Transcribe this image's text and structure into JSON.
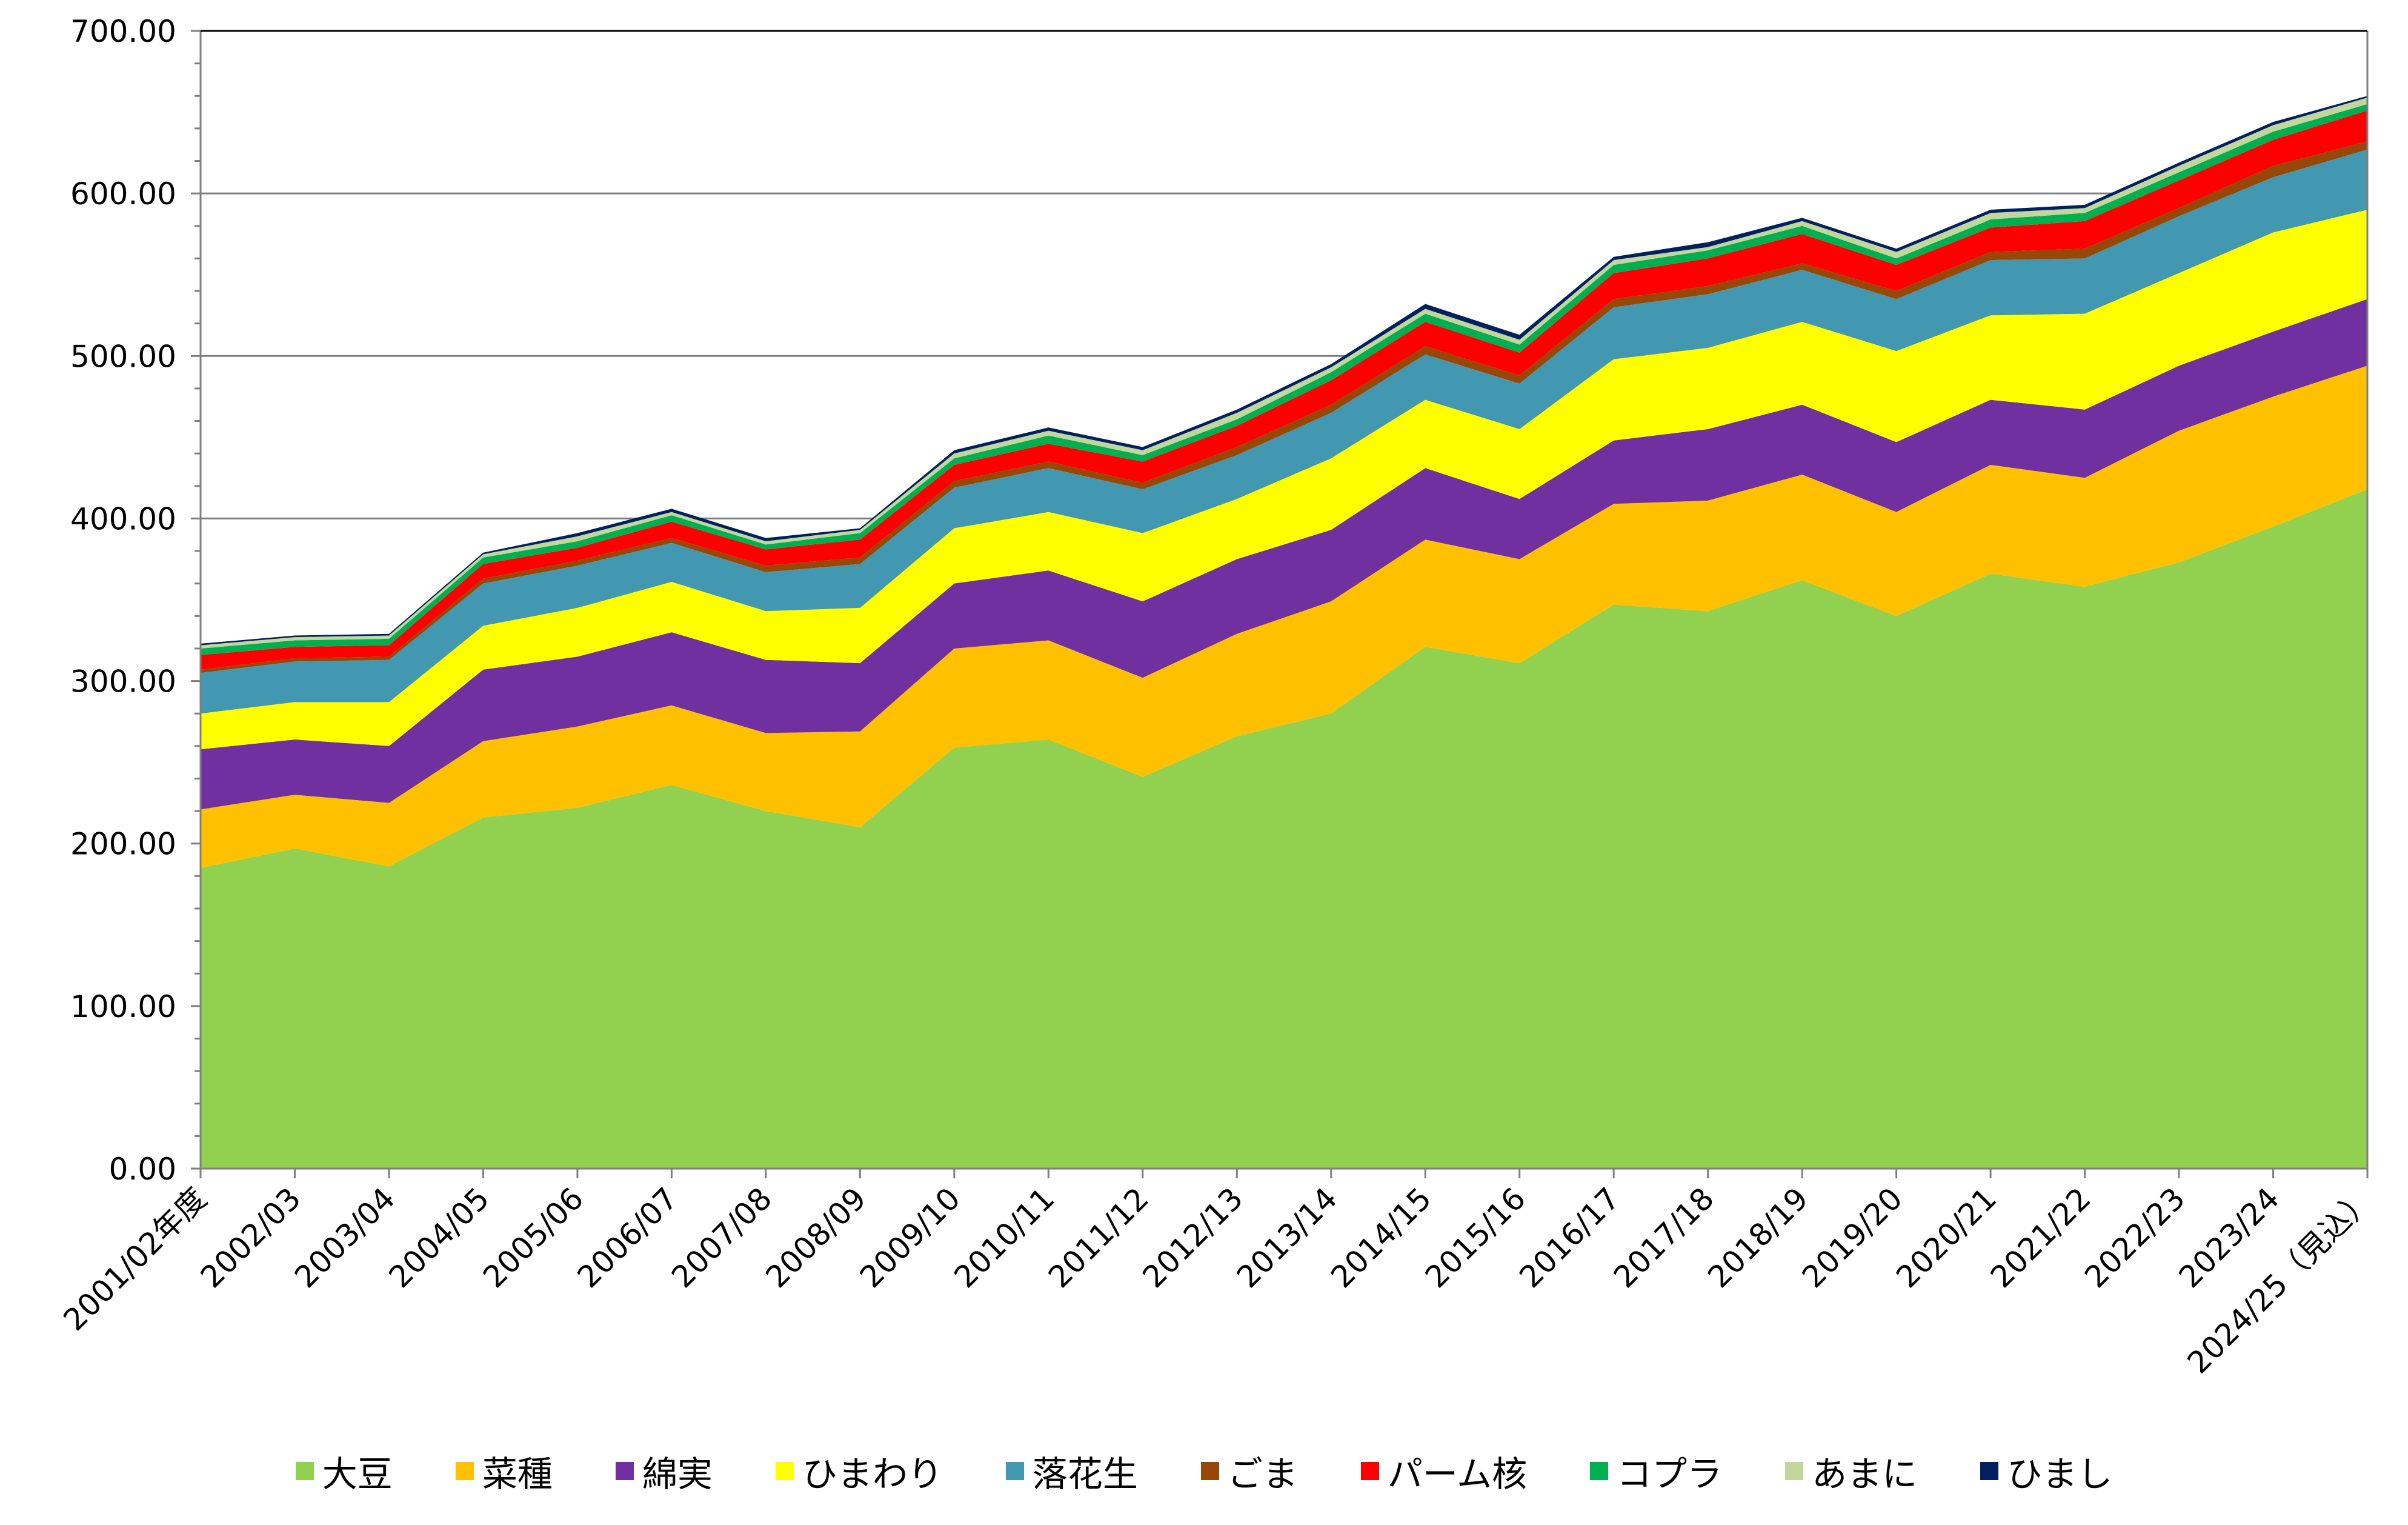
{
  "chart_data": {
    "type": "area",
    "stacked": true,
    "title": "",
    "xlabel": "",
    "ylabel": "",
    "ylim": [
      0,
      700
    ],
    "yticks": [
      "0.00",
      "100.00",
      "200.00",
      "300.00",
      "400.00",
      "500.00",
      "600.00",
      "700.00"
    ],
    "grid": true,
    "legend_position": "bottom",
    "categories": [
      "2001/02年度",
      "2002/03",
      "2003/04",
      "2004/05",
      "2005/06",
      "2006/07",
      "2007/08",
      "2008/09",
      "2009/10",
      "2010/11",
      "2011/12",
      "2012/13",
      "2013/14",
      "2014/15",
      "2015/16",
      "2016/17",
      "2017/18",
      "2018/19",
      "2019/20",
      "2020/21",
      "2021/22",
      "2022/23",
      "2023/24",
      "2024/25（見込）"
    ],
    "series": [
      {
        "name": "大豆",
        "color": "#92d050",
        "values": [
          185,
          197,
          186,
          216,
          222,
          236,
          220,
          210,
          259,
          264,
          241,
          266,
          280,
          321,
          311,
          347,
          343,
          362,
          340,
          366,
          358,
          373,
          395,
          418
        ]
      },
      {
        "name": "菜種",
        "color": "#ffc000",
        "values": [
          36,
          33,
          39,
          47,
          50,
          49,
          48,
          59,
          61,
          61,
          61,
          63,
          69,
          66,
          64,
          62,
          68,
          65,
          64,
          67,
          67,
          81,
          80,
          76
        ]
      },
      {
        "name": "綿実",
        "color": "#7030a0",
        "values": [
          37,
          34,
          35,
          44,
          43,
          45,
          45,
          42,
          40,
          43,
          47,
          46,
          44,
          44,
          37,
          39,
          44,
          43,
          43,
          40,
          42,
          40,
          40,
          41
        ]
      },
      {
        "name": "ひまわり",
        "color": "#ffff00",
        "values": [
          22,
          23,
          27,
          27,
          30,
          31,
          30,
          34,
          34,
          36,
          42,
          37,
          44,
          42,
          43,
          50,
          50,
          51,
          56,
          52,
          59,
          57,
          61,
          55
        ]
      },
      {
        "name": "落花生",
        "color": "#4198b0",
        "values": [
          25,
          25,
          26,
          26,
          26,
          24,
          24,
          27,
          25,
          27,
          27,
          27,
          28,
          28,
          28,
          32,
          33,
          32,
          32,
          34,
          34,
          35,
          34,
          37
        ]
      },
      {
        "name": "ごま",
        "color": "#974706",
        "values": [
          2,
          2,
          2,
          3,
          3,
          3,
          4,
          4,
          4,
          4,
          4,
          5,
          5,
          5,
          5,
          5,
          5,
          4,
          5,
          5,
          6,
          5,
          7,
          5
        ]
      },
      {
        "name": "パーム核",
        "color": "#ff0000",
        "values": [
          9,
          7,
          7,
          9,
          8,
          10,
          10,
          11,
          10,
          11,
          13,
          13,
          15,
          15,
          14,
          16,
          17,
          18,
          16,
          15,
          17,
          17,
          16,
          19
        ]
      },
      {
        "name": "コプラ",
        "color": "#00b050",
        "values": [
          4,
          4,
          4,
          4,
          4,
          4,
          3,
          4,
          4,
          5,
          4,
          4,
          5,
          5,
          5,
          5,
          5,
          5,
          4,
          5,
          5,
          5,
          5,
          4
        ]
      },
      {
        "name": "あまに",
        "color": "#c3d69b",
        "values": [
          2,
          2,
          2,
          2,
          3,
          2,
          2,
          2,
          3,
          3,
          3,
          4,
          3,
          3,
          3,
          3,
          2,
          3,
          4,
          4,
          3,
          4,
          4,
          4
        ]
      },
      {
        "name": "ひまし",
        "color": "#002060",
        "values": [
          1,
          1,
          1,
          1,
          2,
          2,
          2,
          1,
          2,
          2,
          2,
          2,
          2,
          3,
          3,
          2,
          3,
          2,
          2,
          2,
          2,
          2,
          2,
          1
        ]
      }
    ]
  }
}
